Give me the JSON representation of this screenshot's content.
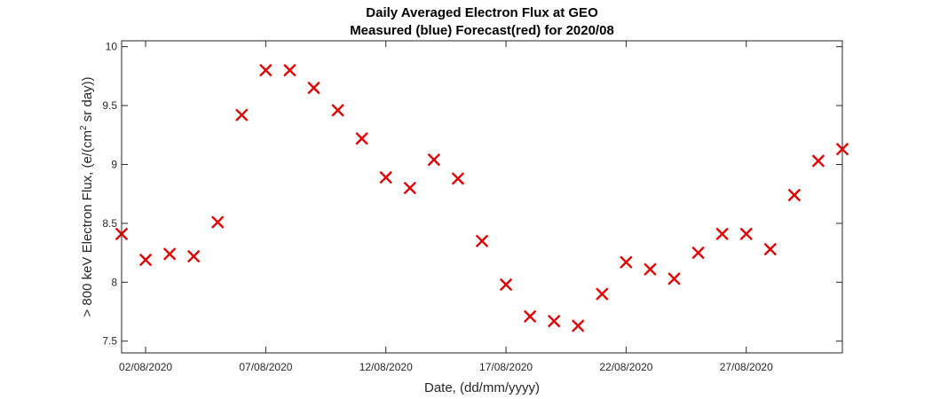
{
  "chart_data": {
    "type": "scatter",
    "title_line1": "Daily Averaged Electron Flux at GEO",
    "title_line2": "Measured (blue) Forecast(red) for 2020/08",
    "xlabel": "Date, (dd/mm/yyyy)",
    "ylabel_main": "> 800 keV Electron Flux, (e/(cm",
    "ylabel_sup": "2",
    "ylabel_rest": " sr day))",
    "xlim": [
      "2020-08-01",
      "2020-08-31"
    ],
    "ylim": [
      7.4,
      10.05
    ],
    "x_ticks": [
      {
        "date": "2020-08-02",
        "label": "02/08/2020"
      },
      {
        "date": "2020-08-07",
        "label": "07/08/2020"
      },
      {
        "date": "2020-08-12",
        "label": "12/08/2020"
      },
      {
        "date": "2020-08-17",
        "label": "17/08/2020"
      },
      {
        "date": "2020-08-22",
        "label": "22/08/2020"
      },
      {
        "date": "2020-08-27",
        "label": "27/08/2020"
      }
    ],
    "y_ticks": [
      {
        "value": 7.5,
        "label": "7.5"
      },
      {
        "value": 8,
        "label": "8"
      },
      {
        "value": 8.5,
        "label": "8.5"
      },
      {
        "value": 9,
        "label": "9"
      },
      {
        "value": 9.5,
        "label": "9.5"
      },
      {
        "value": 10,
        "label": "10"
      }
    ],
    "grid": false,
    "series": [
      {
        "color": "#e00000",
        "marker": "x",
        "x": [
          "2020-08-01",
          "2020-08-02",
          "2020-08-03",
          "2020-08-04",
          "2020-08-05",
          "2020-08-06",
          "2020-08-07",
          "2020-08-08",
          "2020-08-09",
          "2020-08-10",
          "2020-08-11",
          "2020-08-12",
          "2020-08-13",
          "2020-08-14",
          "2020-08-15",
          "2020-08-16",
          "2020-08-17",
          "2020-08-18",
          "2020-08-19",
          "2020-08-20",
          "2020-08-21",
          "2020-08-22",
          "2020-08-23",
          "2020-08-24",
          "2020-08-25",
          "2020-08-26",
          "2020-08-27",
          "2020-08-28",
          "2020-08-29",
          "2020-08-30",
          "2020-08-31"
        ],
        "y": [
          8.41,
          8.19,
          8.24,
          8.22,
          8.51,
          9.42,
          9.8,
          9.8,
          9.65,
          9.46,
          9.22,
          8.89,
          8.8,
          9.04,
          8.88,
          8.35,
          7.98,
          7.71,
          7.67,
          7.63,
          7.9,
          8.17,
          8.11,
          8.03,
          8.25,
          8.41,
          8.41,
          8.28,
          8.74,
          9.03,
          9.13
        ]
      }
    ]
  }
}
